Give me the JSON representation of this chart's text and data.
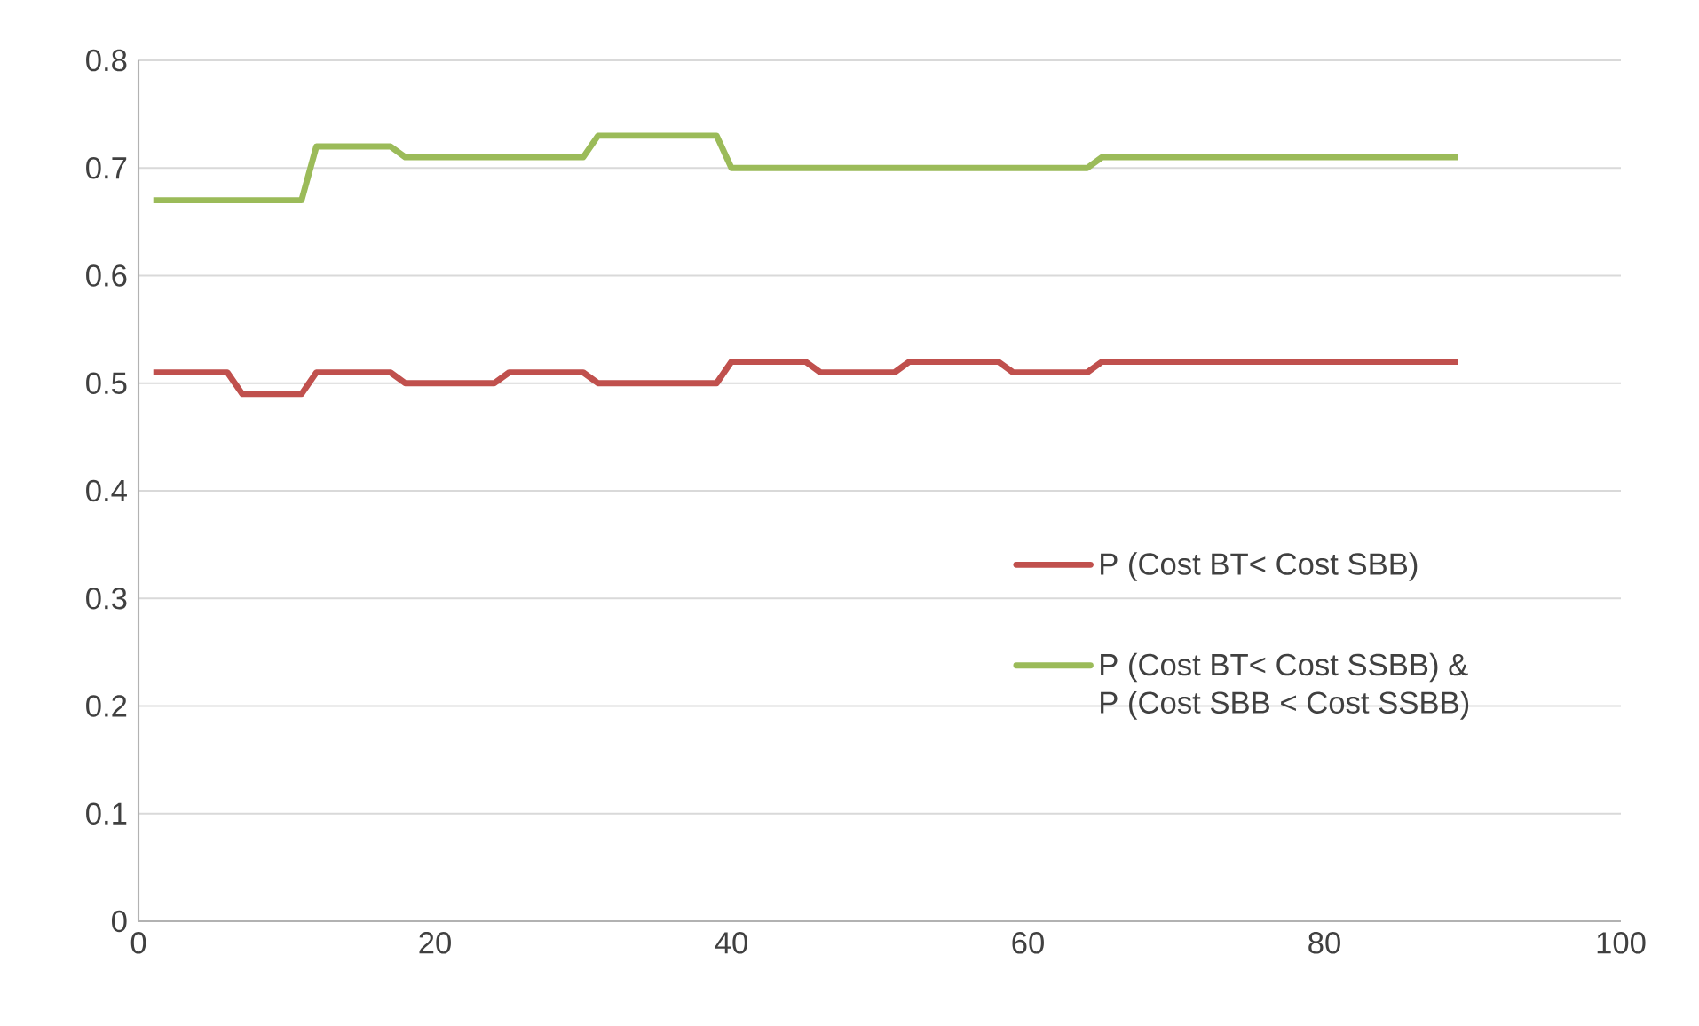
{
  "chart_data": {
    "type": "line",
    "xlim": [
      0,
      100
    ],
    "xticks": [
      0,
      20,
      40,
      60,
      80,
      100
    ],
    "ylim": [
      0,
      0.8
    ],
    "yticks": [
      0,
      0.1,
      0.2,
      0.3,
      0.4,
      0.5,
      0.6,
      0.7,
      0.8
    ],
    "grid": "y",
    "legend": "right",
    "line_style": "solid",
    "marker": "none",
    "series": [
      {
        "name": "P (Cost BT< Cost SBB)",
        "color": "#c0504d",
        "x": [
          1,
          6,
          7,
          11,
          12,
          17,
          18,
          24,
          25,
          30,
          31,
          39,
          40,
          45,
          46,
          51,
          52,
          58,
          59,
          64,
          65,
          89
        ],
        "values": [
          0.51,
          0.51,
          0.49,
          0.49,
          0.51,
          0.51,
          0.5,
          0.5,
          0.51,
          0.51,
          0.5,
          0.5,
          0.52,
          0.52,
          0.51,
          0.51,
          0.52,
          0.52,
          0.51,
          0.51,
          0.52,
          0.52
        ]
      },
      {
        "name": "P (Cost BT< Cost SSBB) & P (Cost SBB < Cost SSBB)",
        "color": "#9bbb59",
        "x": [
          1,
          11,
          12,
          17,
          18,
          30,
          31,
          39,
          40,
          64,
          65,
          89
        ],
        "values": [
          0.67,
          0.67,
          0.72,
          0.72,
          0.71,
          0.71,
          0.73,
          0.73,
          0.7,
          0.7,
          0.71,
          0.71
        ]
      }
    ]
  }
}
